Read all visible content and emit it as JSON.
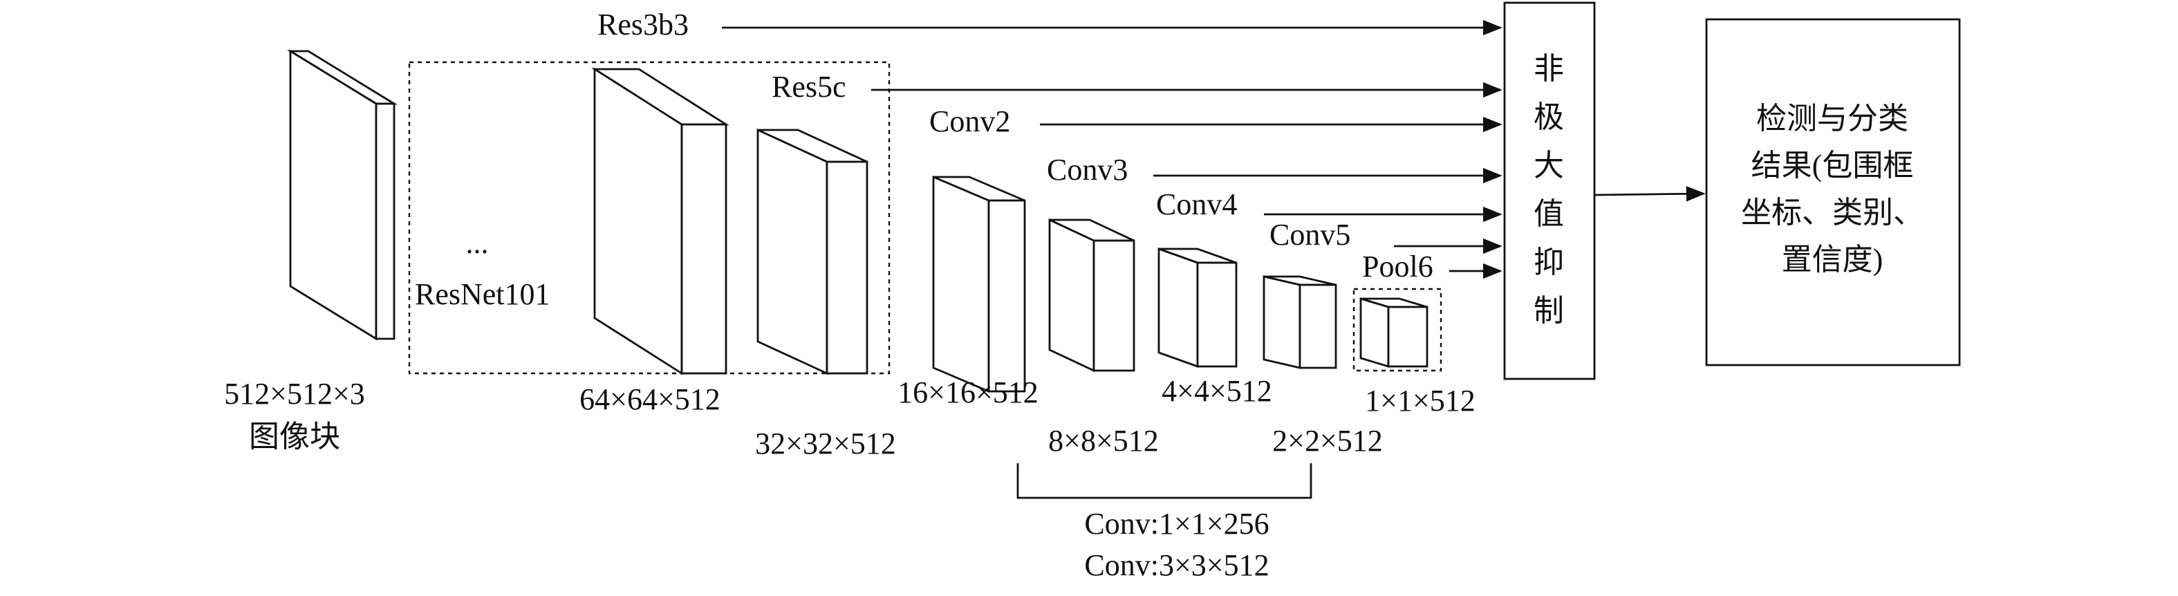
{
  "inputs": {
    "size": "512×512×3",
    "label": "图像块"
  },
  "backbone": {
    "dots": "...",
    "name": "ResNet101"
  },
  "feature_maps": [
    "64×64×512",
    "32×32×512",
    "16×16×512",
    "8×8×512",
    "4×4×512",
    "2×2×512",
    "1×1×512"
  ],
  "layers": [
    "Res3b3",
    "Res5c",
    "Conv2",
    "Conv3",
    "Conv4",
    "Conv5",
    "Pool6"
  ],
  "extra_layers": [
    "Conv:1×1×256",
    "Conv:3×3×512"
  ],
  "nms": [
    "非",
    "极",
    "大",
    "值",
    "抑",
    "制"
  ],
  "output": [
    "检测与分类",
    "结果(包围框",
    "坐标、类别、",
    "置信度)"
  ]
}
